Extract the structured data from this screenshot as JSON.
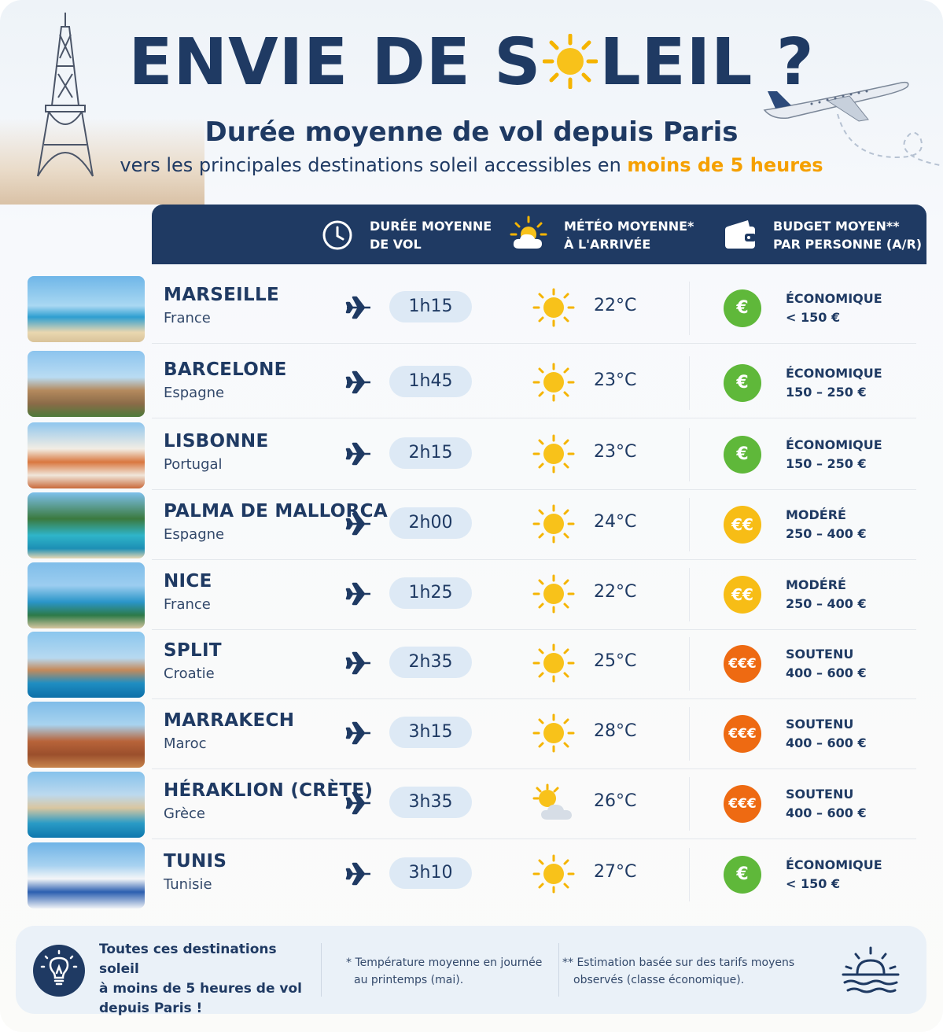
{
  "header": {
    "title_before": "ENVIE DE S",
    "title_after": "LEIL",
    "title_question": "?",
    "subtitle": "Durée moyenne de vol depuis Paris",
    "subtitle2_before": "vers les principales destinations soleil accessibles en ",
    "subtitle2_highlight": "moins de 5 heures"
  },
  "columns": {
    "duration_l1": "DURÉE MOYENNE",
    "duration_l2": "DE VOL",
    "weather_l1": "MÉTÉO MOYENNE*",
    "weather_l2": "À L'ARRIVÉE",
    "budget_l1": "BUDGET MOYEN**",
    "budget_l2": "PAR PERSONNE (A/R)"
  },
  "colors": {
    "navy": "#1f3a63",
    "highlight": "#f5a000",
    "eco": "#5fb83a",
    "mod": "#f7bd16",
    "sout": "#ee6a12"
  },
  "destinations": [
    {
      "city": "MARSEILLE",
      "country": "France",
      "duration": "1h15",
      "weather": "sun",
      "temp": "22°C",
      "coin": "€",
      "tier": "ÉCONOMIQUE",
      "range": "< 150 €",
      "level": "eco"
    },
    {
      "city": "BARCELONE",
      "country": "Espagne",
      "duration": "1h45",
      "weather": "sun",
      "temp": "23°C",
      "coin": "€",
      "tier": "ÉCONOMIQUE",
      "range": "150 – 250 €",
      "level": "eco"
    },
    {
      "city": "LISBONNE",
      "country": "Portugal",
      "duration": "2h15",
      "weather": "sun",
      "temp": "23°C",
      "coin": "€",
      "tier": "ÉCONOMIQUE",
      "range": "150 – 250 €",
      "level": "eco"
    },
    {
      "city": "PALMA DE MALLORCA",
      "country": "Espagne",
      "duration": "2h00",
      "weather": "sun",
      "temp": "24°C",
      "coin": "€€",
      "tier": "MODÉRÉ",
      "range": "250 – 400 €",
      "level": "mod"
    },
    {
      "city": "NICE",
      "country": "France",
      "duration": "1h25",
      "weather": "sun",
      "temp": "22°C",
      "coin": "€€",
      "tier": "MODÉRÉ",
      "range": "250 – 400 €",
      "level": "mod"
    },
    {
      "city": "SPLIT",
      "country": "Croatie",
      "duration": "2h35",
      "weather": "sun",
      "temp": "25°C",
      "coin": "€€€",
      "tier": "SOUTENU",
      "range": "400 – 600 €",
      "level": "sout"
    },
    {
      "city": "MARRAKECH",
      "country": "Maroc",
      "duration": "3h15",
      "weather": "sun",
      "temp": "28°C",
      "coin": "€€€",
      "tier": "SOUTENU",
      "range": "400 – 600 €",
      "level": "sout"
    },
    {
      "city": "HÉRAKLION (CRÈTE)",
      "country": "Grèce",
      "duration": "3h35",
      "weather": "sun-cloud",
      "temp": "26°C",
      "coin": "€€€",
      "tier": "SOUTENU",
      "range": "400 – 600 €",
      "level": "sout"
    },
    {
      "city": "TUNIS",
      "country": "Tunisie",
      "duration": "3h10",
      "weather": "sun",
      "temp": "27°C",
      "coin": "€",
      "tier": "ÉCONOMIQUE",
      "range": "< 150 €",
      "level": "eco"
    }
  ],
  "footer": {
    "main_l1": "Toutes ces destinations soleil",
    "main_l2": "à moins de 5 heures de vol",
    "main_l3": "depuis Paris !",
    "note1_l1": "* Température moyenne en journée",
    "note1_l2": "au printemps (mai).",
    "note2_l1": "** Estimation basée sur des tarifs moyens",
    "note2_l2": "observés (classe économique)."
  }
}
